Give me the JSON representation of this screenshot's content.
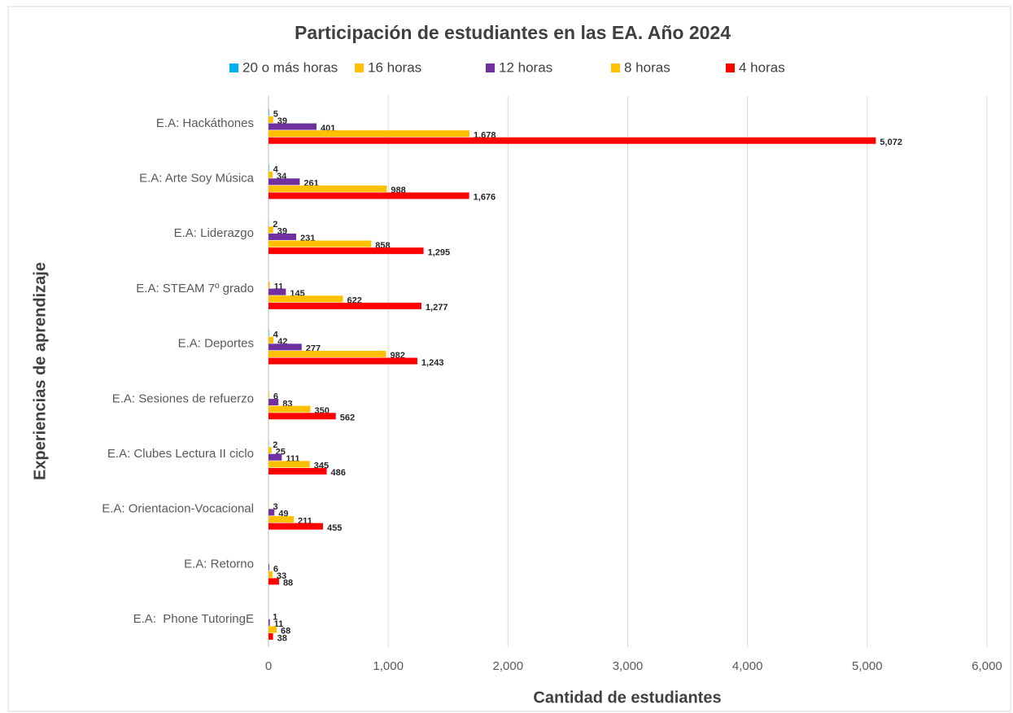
{
  "chart_data": {
    "type": "hbar",
    "title": "Participación de estudiantes en las EA. Año 2024",
    "x_label": "Cantidad de estudiantes",
    "y_label": "Experiencias de aprendizaje",
    "categories": [
      "E.A: Hackáthones",
      "E.A: Arte Soy Música",
      "E.A: Liderazgo",
      "E.A: STEAM 7º grado",
      "E.A: Deportes",
      "E.A: Sesiones de refuerzo",
      "E.A: Clubes Lectura II ciclo",
      "E.A: Orientacion-Vocacional",
      "E.A: Retorno",
      "E.A:  Phone TutoringE"
    ],
    "series": [
      {
        "name": "20 o más horas",
        "color": "#00b0f0",
        "values": [
          5,
          4,
          2,
          null,
          4,
          null,
          2,
          null,
          null,
          null
        ],
        "value_labels": [
          "5",
          "4",
          "2",
          null,
          "4",
          null,
          "2",
          null,
          null,
          null
        ]
      },
      {
        "name": "16 horas",
        "color": "#ffc000",
        "values": [
          39,
          34,
          39,
          11,
          42,
          6,
          25,
          3,
          null,
          1
        ],
        "value_labels": [
          "39",
          "34",
          "39",
          "11",
          "42",
          "6",
          "25",
          "3",
          null,
          "1"
        ]
      },
      {
        "name": "12 horas",
        "color": "#7030a0",
        "values": [
          401,
          261,
          231,
          145,
          277,
          83,
          111,
          49,
          6,
          11
        ],
        "value_labels": [
          "401",
          "261",
          "231",
          "145",
          "277",
          "83",
          "111",
          "49",
          "6",
          "11"
        ]
      },
      {
        "name": "8 horas",
        "color": "#ffc000",
        "values": [
          1678,
          988,
          858,
          622,
          982,
          350,
          345,
          211,
          33,
          68
        ],
        "value_labels": [
          "1,678",
          "988",
          "858",
          "622",
          "982",
          "350",
          "345",
          "211",
          "33",
          "68"
        ]
      },
      {
        "name": "4 horas",
        "color": "#ff0000",
        "values": [
          5072,
          1676,
          1295,
          1277,
          1243,
          562,
          486,
          455,
          88,
          38
        ],
        "value_labels": [
          "5,072",
          "1,676",
          "1,295",
          "1,277",
          "1,243",
          "562",
          "486",
          "455",
          "88",
          "38"
        ]
      }
    ],
    "xlim": [
      0,
      6000
    ],
    "xticks": [
      0,
      {
        "value": 1000,
        "label": "1,000"
      },
      {
        "value": 2000,
        "label": "2,000"
      },
      {
        "value": 3000,
        "label": "3,000"
      },
      {
        "value": 4000,
        "label": "4,000"
      },
      {
        "value": 5000,
        "label": "5,000"
      },
      {
        "value": 6000,
        "label": "6,000"
      }
    ],
    "grid": true,
    "legend": "top"
  }
}
